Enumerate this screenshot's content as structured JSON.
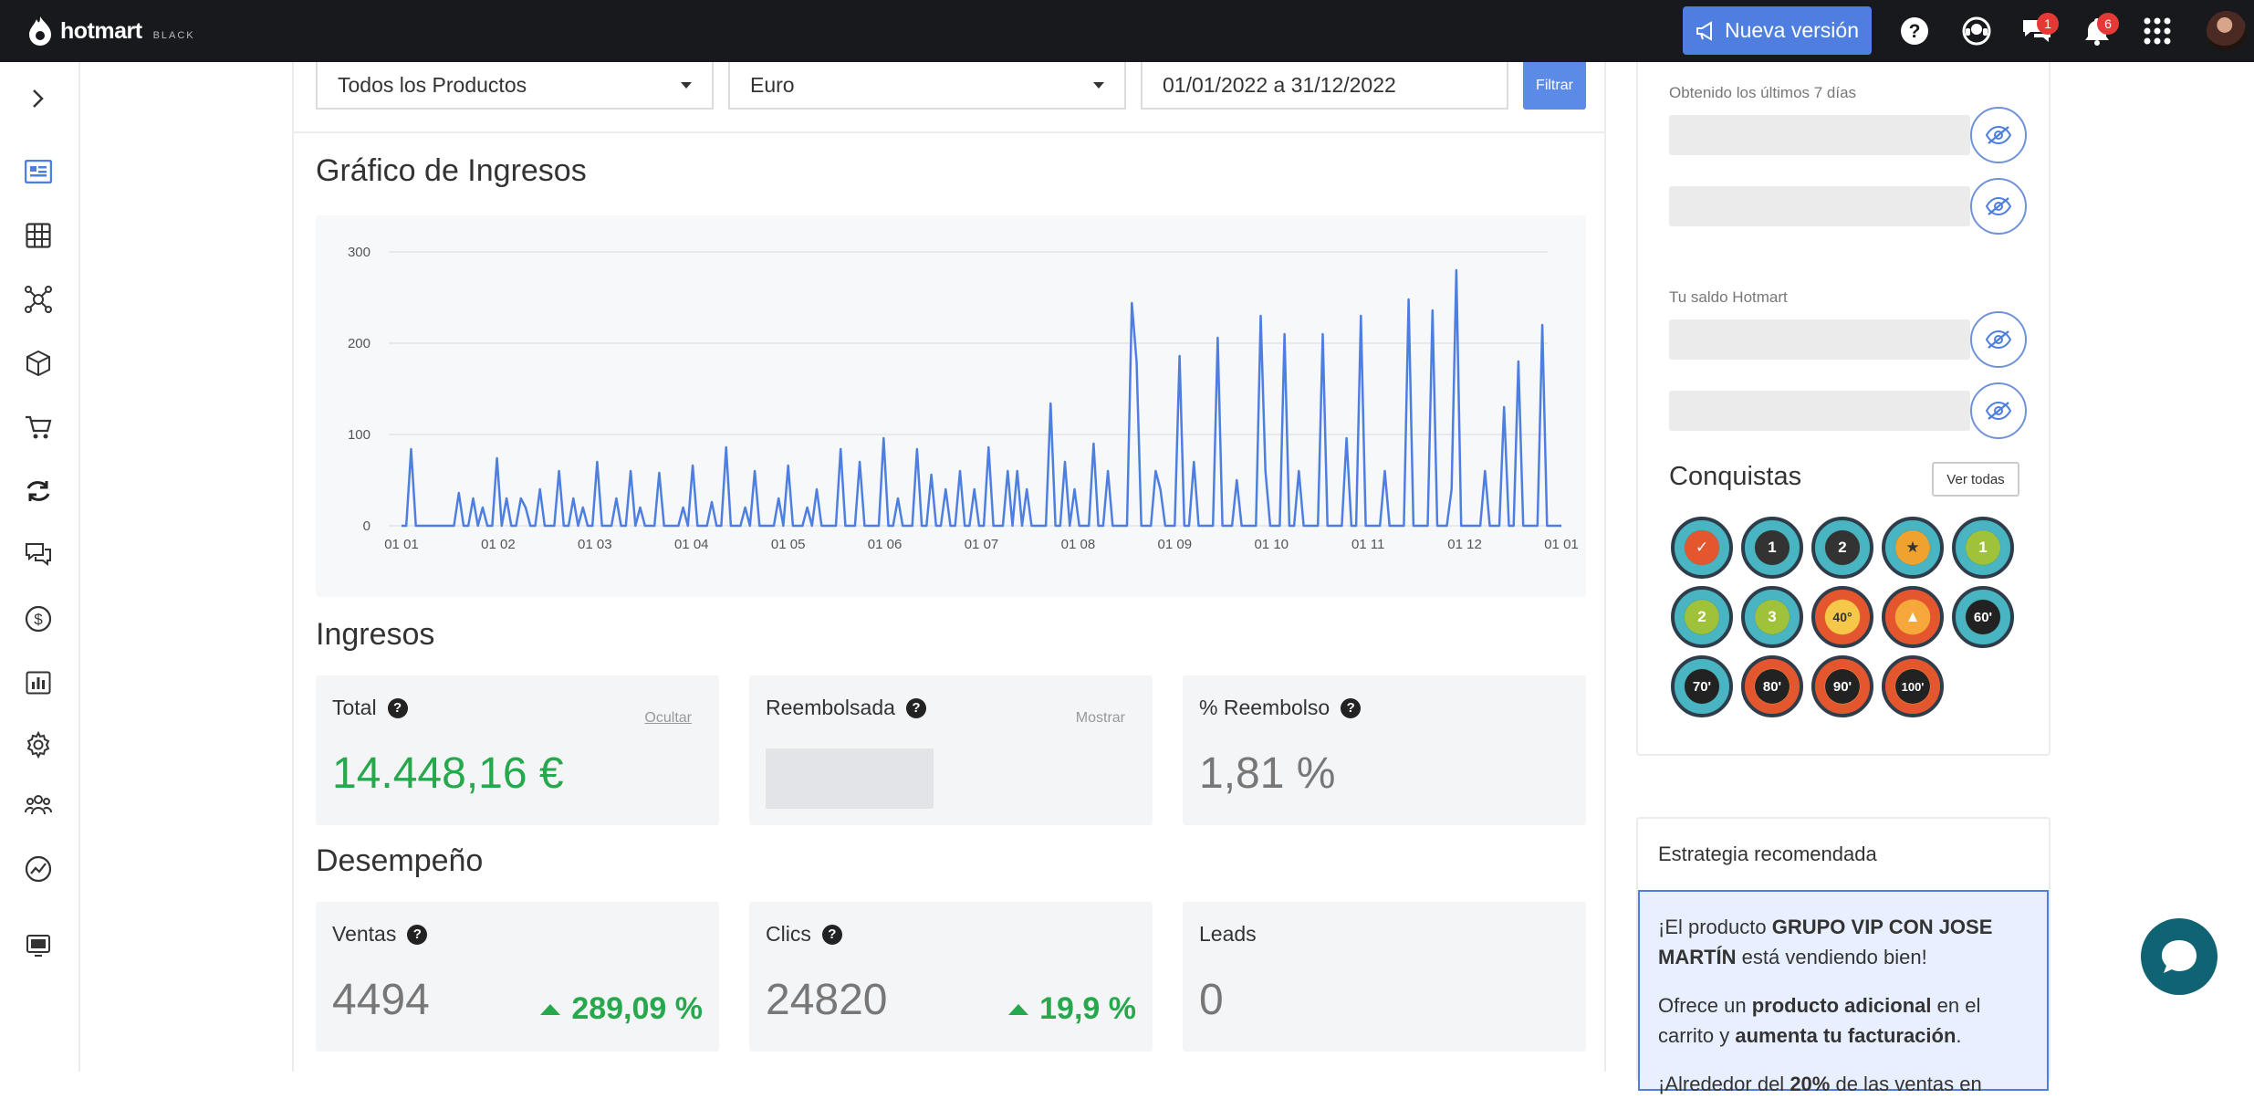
{
  "topbar": {
    "brand": "hotmart",
    "brand_sub": "BLACK",
    "new_version_label": "Nueva versión",
    "chat_badge": "1",
    "notif_badge": "6"
  },
  "filters": {
    "product": "Todos los Productos",
    "currency": "Euro",
    "date_range": "01/01/2022 a 31/12/2022",
    "filter_label": "Filtrar"
  },
  "income_chart_section": {
    "title": "Gráfico de Ingresos"
  },
  "chart_data": {
    "type": "line",
    "title": "Gráfico de Ingresos",
    "xlabel": "",
    "ylabel": "",
    "ylim": [
      0,
      300
    ],
    "yticks": [
      "0",
      "100",
      "200",
      "300"
    ],
    "xticks": [
      "01 01",
      "01 02",
      "01 03",
      "01 04",
      "01 05",
      "01 06",
      "01 07",
      "01 08",
      "01 09",
      "01 10",
      "01 11",
      "01 12",
      "01 01"
    ],
    "grid": true,
    "series": [
      {
        "name": "Ingresos",
        "color": "#4e7fe0",
        "values": [
          0,
          0,
          84,
          0,
          0,
          0,
          0,
          0,
          0,
          0,
          0,
          0,
          36,
          0,
          0,
          30,
          0,
          20,
          0,
          0,
          74,
          0,
          30,
          0,
          0,
          30,
          20,
          0,
          0,
          40,
          0,
          0,
          0,
          60,
          0,
          0,
          30,
          0,
          20,
          0,
          0,
          70,
          0,
          0,
          0,
          30,
          0,
          0,
          60,
          0,
          20,
          0,
          0,
          0,
          58,
          0,
          0,
          0,
          0,
          20,
          0,
          66,
          0,
          0,
          0,
          26,
          0,
          0,
          86,
          0,
          0,
          0,
          20,
          0,
          60,
          0,
          0,
          0,
          0,
          30,
          0,
          66,
          0,
          0,
          0,
          20,
          0,
          40,
          0,
          0,
          0,
          0,
          84,
          0,
          0,
          0,
          70,
          0,
          0,
          0,
          0,
          96,
          0,
          0,
          30,
          0,
          0,
          0,
          84,
          0,
          0,
          56,
          0,
          0,
          40,
          0,
          0,
          60,
          0,
          0,
          40,
          0,
          0,
          86,
          0,
          0,
          0,
          60,
          0,
          60,
          0,
          40,
          0,
          0,
          0,
          0,
          134,
          0,
          0,
          70,
          0,
          40,
          0,
          0,
          0,
          90,
          0,
          0,
          60,
          0,
          0,
          0,
          0,
          244,
          180,
          0,
          0,
          0,
          60,
          40,
          0,
          0,
          0,
          186,
          0,
          0,
          70,
          0,
          0,
          0,
          0,
          206,
          0,
          0,
          0,
          50,
          0,
          0,
          0,
          0,
          230,
          60,
          0,
          0,
          0,
          210,
          0,
          0,
          60,
          0,
          0,
          0,
          0,
          210,
          0,
          0,
          0,
          0,
          96,
          0,
          0,
          230,
          0,
          0,
          0,
          0,
          60,
          0,
          0,
          0,
          0,
          248,
          0,
          0,
          0,
          0,
          236,
          0,
          0,
          0,
          40,
          280,
          0,
          0,
          0,
          0,
          0,
          60,
          0,
          0,
          0,
          130,
          0,
          0,
          180,
          0,
          0,
          0,
          0,
          220,
          0,
          0,
          0,
          0
        ]
      }
    ]
  },
  "income_section": {
    "title": "Ingresos",
    "cards": [
      {
        "label": "Total",
        "link": "Ocultar",
        "value": "14.448,16 €"
      },
      {
        "label": "Reembolsada",
        "link": "Mostrar"
      },
      {
        "label": "% Reembolso",
        "value": "1,81 %"
      }
    ]
  },
  "performance_section": {
    "title": "Desempeño",
    "cards": [
      {
        "label": "Ventas",
        "value": "4494",
        "trend": "289,09 %"
      },
      {
        "label": "Clics",
        "value": "24820",
        "trend": "19,9 %"
      },
      {
        "label": "Leads",
        "value": "0"
      }
    ]
  },
  "right_panel": {
    "last7_label": "Obtenido los últimos 7 días",
    "balance_label": "Tu saldo Hotmart",
    "achievements_title": "Conquistas",
    "see_all_label": "Ver todas",
    "medals": [
      "1",
      "2",
      "3",
      "40°",
      "60'",
      "70'",
      "80'",
      "90'",
      "100'"
    ]
  },
  "strategy": {
    "heading": "Estrategia recomendada",
    "p1_pre": "¡El producto ",
    "p1_product": "GRUPO VIP CON JOSE MARTÍN",
    "p1_post": " está vendiendo bien!",
    "p2_pre": "Ofrece un ",
    "p2_b1": "producto adicional",
    "p2_mid": " en el carrito y ",
    "p2_b2": "aumenta tu facturación",
    "p2_end": ".",
    "p3_pre": "¡Alrededor del ",
    "p3_pct": "20%",
    "p3_post": " de las ventas en"
  }
}
